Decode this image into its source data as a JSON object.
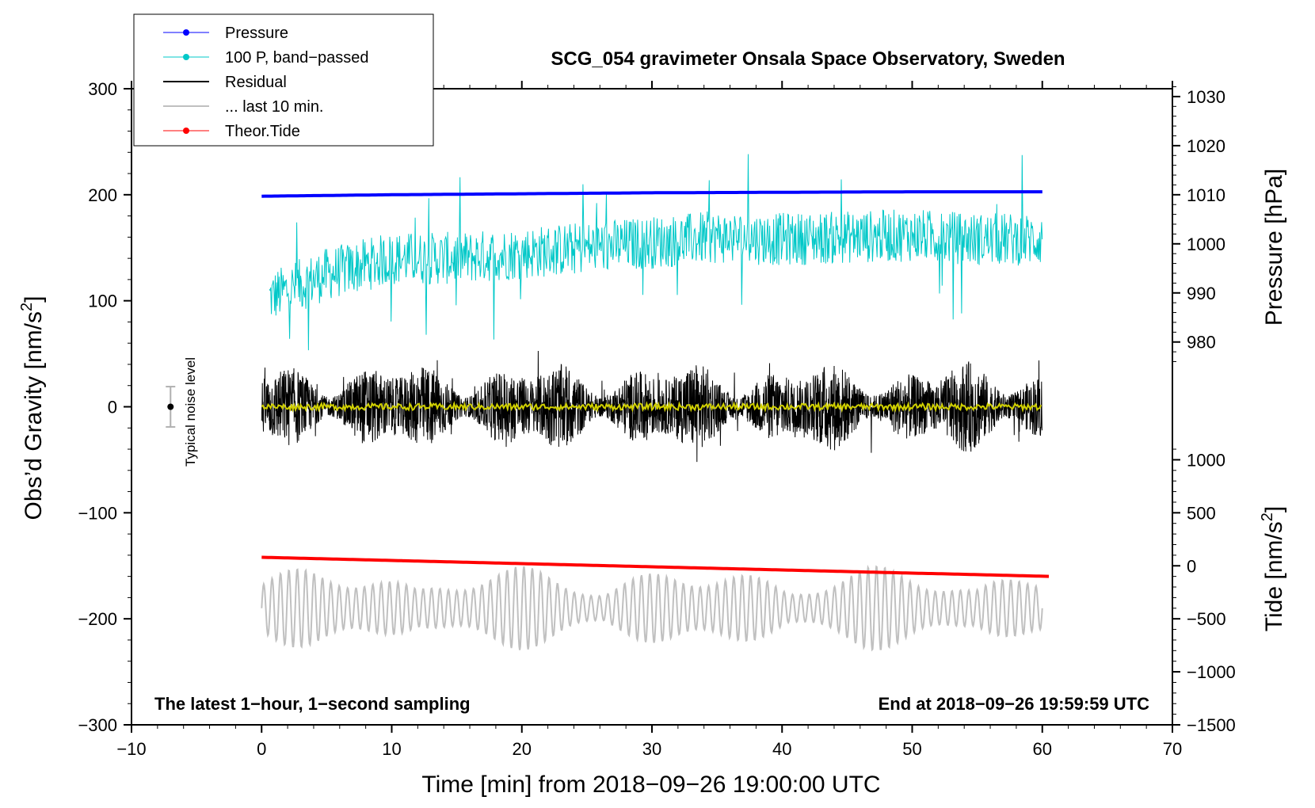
{
  "chart_data": {
    "type": "line",
    "title": "SCG_054 gravimeter Onsala Space Observatory, Sweden",
    "xlabel": "Time [min] from 2018−09−26 19:00:00 UTC",
    "ylabel_prefix": "Obs’d Gravity [nm/s",
    "ylabel_sup": "2",
    "ylabel_suffix": "]",
    "y2label": "Pressure [hPa]",
    "y3label_prefix": "Tide [nm/s",
    "y3label_sup": "2",
    "y3label_suffix": "]",
    "xlim": [
      -10,
      70
    ],
    "ylim": [
      -300,
      300
    ],
    "pressure_axis": {
      "base_value": 1010,
      "base_gravity": 200,
      "gravity_per_unit": 4.63
    },
    "tide_axis": {
      "base_value": 0,
      "base_gravity": -150,
      "gravity_per_unit": 0.1
    },
    "x_ticks": [
      {
        "v": -10,
        "label": "−10"
      },
      {
        "v": 0,
        "label": "0"
      },
      {
        "v": 10,
        "label": "10"
      },
      {
        "v": 20,
        "label": "20"
      },
      {
        "v": 30,
        "label": "30"
      },
      {
        "v": 40,
        "label": "40"
      },
      {
        "v": 50,
        "label": "50"
      },
      {
        "v": 60,
        "label": "60"
      },
      {
        "v": 70,
        "label": "70"
      }
    ],
    "y_ticks": [
      {
        "v": -300,
        "label": "−300"
      },
      {
        "v": -200,
        "label": "−200"
      },
      {
        "v": -100,
        "label": "−100"
      },
      {
        "v": 0,
        "label": "0"
      },
      {
        "v": 100,
        "label": "100"
      },
      {
        "v": 200,
        "label": "200"
      },
      {
        "v": 300,
        "label": "300"
      }
    ],
    "pressure_ticks": [
      {
        "v": 980,
        "label": "980"
      },
      {
        "v": 990,
        "label": "990"
      },
      {
        "v": 1000,
        "label": "1000"
      },
      {
        "v": 1010,
        "label": "1010"
      },
      {
        "v": 1020,
        "label": "1020"
      },
      {
        "v": 1030,
        "label": "1030"
      }
    ],
    "tide_ticks": [
      {
        "v": -1500,
        "label": "−1500"
      },
      {
        "v": -1000,
        "label": "−1000"
      },
      {
        "v": -500,
        "label": "−500"
      },
      {
        "v": 0,
        "label": "0"
      },
      {
        "v": 500,
        "label": "500"
      },
      {
        "v": 1000,
        "label": "1000"
      }
    ],
    "series": [
      {
        "name": "Pressure",
        "color": "#0000ff",
        "axis": "pressure",
        "x": [
          0,
          10,
          20,
          30,
          40,
          50,
          60
        ],
        "values": [
          1009.7,
          1010.0,
          1010.2,
          1010.4,
          1010.5,
          1010.6,
          1010.6
        ]
      },
      {
        "name": "100 P, band−passed",
        "color": "#00c8c8",
        "axis": "gravity",
        "x": [
          0,
          5,
          10,
          15,
          20,
          25,
          30,
          35,
          40,
          45,
          50,
          55,
          60
        ],
        "values": [
          100,
          125,
          140,
          140,
          145,
          150,
          155,
          160,
          158,
          160,
          162,
          158,
          158
        ],
        "amplitude": 25
      },
      {
        "name": "Residual",
        "color": "#000000",
        "axis": "gravity",
        "x": [
          0,
          60
        ],
        "values": [
          0,
          0
        ],
        "amplitude": 45
      },
      {
        "name": "... last 10 min.",
        "color": "#c0c0c0",
        "axis": "gravity",
        "x": [
          0,
          60
        ],
        "values": [
          -190,
          -190
        ],
        "amplitude": 40
      },
      {
        "name": "Theor.Tide",
        "color": "#ff0000",
        "axis": "tide",
        "x": [
          0,
          60.5
        ],
        "values": [
          80,
          -100
        ]
      },
      {
        "name": "Smoothed residual",
        "color": "#d0d000",
        "axis": "gravity",
        "x": [
          0,
          60
        ],
        "values": [
          0,
          0
        ],
        "amplitude": 3
      }
    ],
    "legend": [
      {
        "label": "Pressure",
        "color": "#0000ff",
        "marker": true
      },
      {
        "label": "100 P, band−passed",
        "color": "#00c8c8",
        "marker": true
      },
      {
        "label": "Residual",
        "color": "#000000",
        "marker": false
      },
      {
        "label": "... last 10 min.",
        "color": "#c0c0c0",
        "marker": false
      },
      {
        "label": "Theor.Tide",
        "color": "#ff0000",
        "marker": true
      }
    ],
    "legend_position": "top-left",
    "noise_level": {
      "x": -7,
      "y": 0,
      "error": 19,
      "label": "Typical noise level"
    },
    "annotations": {
      "bottom_left": "The latest 1−hour, 1−second sampling",
      "bottom_right": "End at 2018−09−26 19:59:59 UTC"
    }
  }
}
